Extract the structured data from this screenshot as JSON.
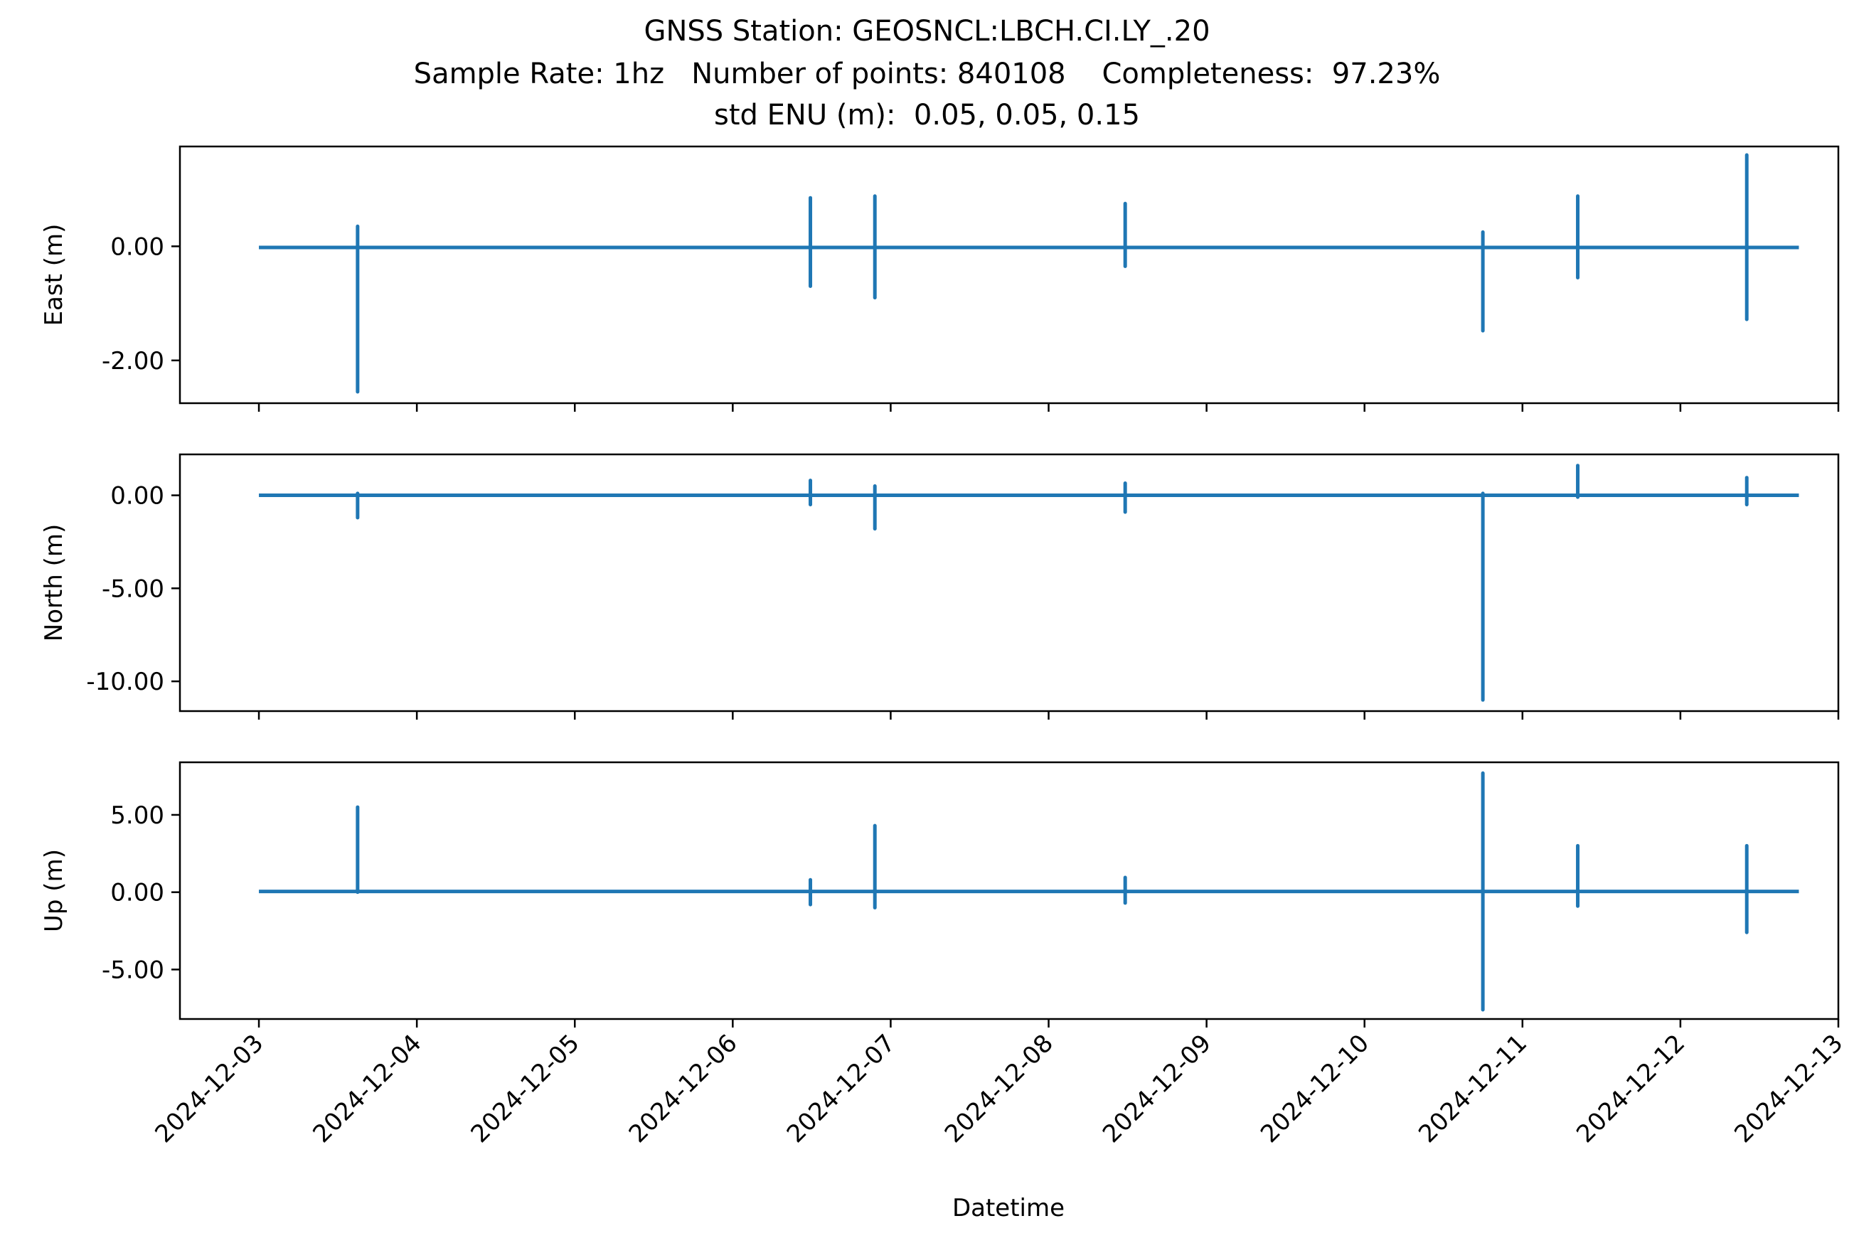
{
  "chart_data": {
    "type": "line",
    "title": "GNSS Station: GEOSNCL:LBCH.CI.LY_.20",
    "subtitle_line_1": "Sample Rate: 1hz   Number of points: 840108    Completeness:  97.23%",
    "subtitle_line_2": "std ENU (m):  0.05, 0.05, 0.15",
    "xlabel": "Datetime",
    "x_ticks": [
      "2024-12-03",
      "2024-12-04",
      "2024-12-05",
      "2024-12-06",
      "2024-12-07",
      "2024-12-08",
      "2024-12-09",
      "2024-12-10",
      "2024-12-11",
      "2024-12-12",
      "2024-12-13"
    ],
    "xlim": [
      "2024-12-02T12:00",
      "2024-12-13T00:00"
    ],
    "data_range": [
      "2024-12-03T00:00",
      "2024-12-12T18:00"
    ],
    "line_color": "#1f77b4",
    "grid": false,
    "panels": [
      {
        "name": "east",
        "ylabel": "East (m)",
        "ylim": [
          -2.75,
          1.75
        ],
        "yticks": [
          0,
          -2
        ],
        "ytick_labels": [
          "0.00",
          "-2.00"
        ],
        "baseline": -0.02,
        "spikes": [
          {
            "t": "2024-12-03T15:00",
            "min": -2.55,
            "max": 0.35
          },
          {
            "t": "2024-12-06T11:48",
            "min": -0.7,
            "max": 0.85
          },
          {
            "t": "2024-12-06T21:36",
            "min": -0.9,
            "max": 0.88
          },
          {
            "t": "2024-12-08T11:38",
            "min": -0.35,
            "max": 0.75
          },
          {
            "t": "2024-12-10T17:59",
            "min": -1.48,
            "max": 0.25
          },
          {
            "t": "2024-12-11T08:24",
            "min": -0.55,
            "max": 0.88
          },
          {
            "t": "2024-12-12T10:05",
            "min": -1.28,
            "max": 1.6
          }
        ]
      },
      {
        "name": "north",
        "ylabel": "North (m)",
        "ylim": [
          -11.6,
          2.2
        ],
        "yticks": [
          0,
          -5,
          -10
        ],
        "ytick_labels": [
          "0.00",
          "-5.00",
          "-10.00"
        ],
        "baseline": 0.0,
        "spikes": [
          {
            "t": "2024-12-03T15:00",
            "min": -1.2,
            "max": 0.1
          },
          {
            "t": "2024-12-06T11:48",
            "min": -0.5,
            "max": 0.8
          },
          {
            "t": "2024-12-06T21:36",
            "min": -1.8,
            "max": 0.5
          },
          {
            "t": "2024-12-08T11:38",
            "min": -0.9,
            "max": 0.65
          },
          {
            "t": "2024-12-10T17:59",
            "min": -11.0,
            "max": 0.1
          },
          {
            "t": "2024-12-11T08:24",
            "min": -0.1,
            "max": 1.6
          },
          {
            "t": "2024-12-12T10:05",
            "min": -0.5,
            "max": 0.95
          }
        ]
      },
      {
        "name": "up",
        "ylabel": "Up (m)",
        "ylim": [
          -8.2,
          8.4
        ],
        "yticks": [
          5,
          0,
          -5
        ],
        "ytick_labels": [
          "5.00",
          "0.00",
          "-5.00"
        ],
        "baseline": 0.05,
        "spikes": [
          {
            "t": "2024-12-03T15:00",
            "min": 0.0,
            "max": 5.5
          },
          {
            "t": "2024-12-06T11:48",
            "min": -0.8,
            "max": 0.8
          },
          {
            "t": "2024-12-06T21:36",
            "min": -1.0,
            "max": 4.3
          },
          {
            "t": "2024-12-08T11:38",
            "min": -0.7,
            "max": 0.95
          },
          {
            "t": "2024-12-10T17:59",
            "min": -7.6,
            "max": 7.7
          },
          {
            "t": "2024-12-11T08:24",
            "min": -0.9,
            "max": 3.0
          },
          {
            "t": "2024-12-12T10:05",
            "min": -2.6,
            "max": 3.0
          }
        ]
      }
    ]
  }
}
